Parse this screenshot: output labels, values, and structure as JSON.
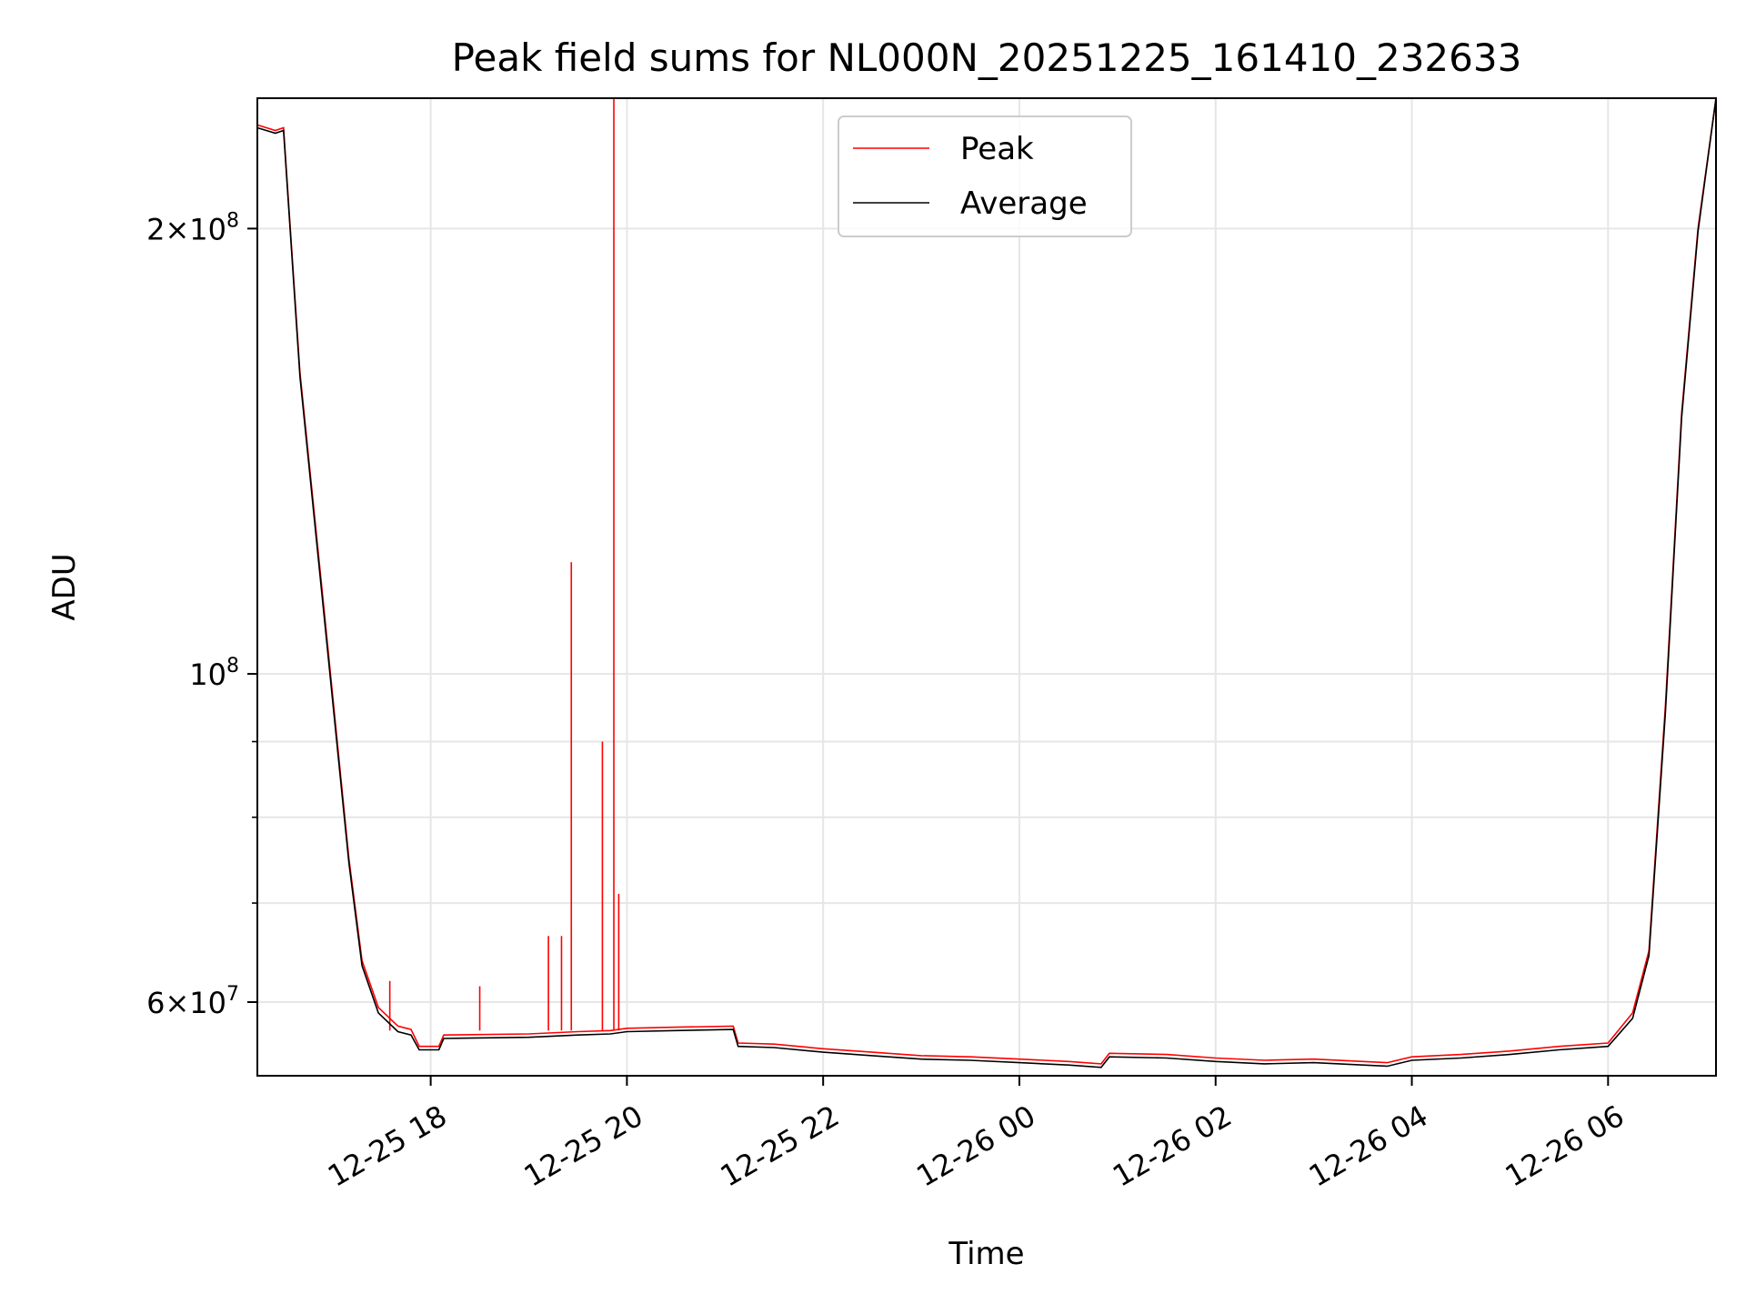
{
  "chart_data": {
    "type": "line",
    "title": "Peak field sums for NL000N_20251225_161410_232633",
    "xlabel": "Time",
    "ylabel": "ADU",
    "y_scale": "log",
    "grid": true,
    "legend_position": "upper center",
    "x_range": [
      "2025-12-25 16:14",
      "2025-12-26 07:06"
    ],
    "ylim": [
      53500000,
      245000000
    ],
    "x_ticks": [
      "2025-12-25 18:00",
      "2025-12-25 20:00",
      "2025-12-25 22:00",
      "2025-12-26 00:00",
      "2025-12-26 02:00",
      "2025-12-26 04:00",
      "2025-12-26 06:00"
    ],
    "x_tick_labels": [
      "12-25 18",
      "12-25 20",
      "12-25 22",
      "12-26 00",
      "12-26 02",
      "12-26 04",
      "12-26 06"
    ],
    "y_ticks": [
      {
        "value": 60000000,
        "mantissa": "6",
        "base": "10",
        "exponent": "7"
      },
      {
        "value": 100000000,
        "mantissa": "",
        "base": "10",
        "exponent": "8"
      },
      {
        "value": 200000000,
        "mantissa": "2",
        "base": "10",
        "exponent": "8"
      }
    ],
    "y_minor_ticks": [
      70000000,
      80000000,
      90000000
    ],
    "series": [
      {
        "name": "Peak",
        "color": "#ff0000",
        "points": [
          [
            "2025-12-25 16:14",
            235000000
          ],
          [
            "2025-12-25 16:25",
            233000000
          ],
          [
            "2025-12-25 16:30",
            234000000
          ],
          [
            "2025-12-25 16:40",
            160000000
          ],
          [
            "2025-12-25 16:55",
            110000000
          ],
          [
            "2025-12-25 17:10",
            75000000
          ],
          [
            "2025-12-25 17:18",
            64000000
          ],
          [
            "2025-12-25 17:28",
            59500000
          ],
          [
            "2025-12-25 17:40",
            57800000
          ],
          [
            "2025-12-25 17:48",
            57500000
          ],
          [
            "2025-12-25 17:53",
            56000000
          ],
          [
            "2025-12-25 18:05",
            56000000
          ],
          [
            "2025-12-25 18:08",
            57000000
          ],
          [
            "2025-12-25 19:00",
            57100000
          ],
          [
            "2025-12-25 19:30",
            57300000
          ],
          [
            "2025-12-25 19:50",
            57400000
          ],
          [
            "2025-12-25 20:00",
            57600000
          ],
          [
            "2025-12-25 20:30",
            57700000
          ],
          [
            "2025-12-25 21:05",
            57800000
          ],
          [
            "2025-12-25 21:08",
            56300000
          ],
          [
            "2025-12-25 21:30",
            56200000
          ],
          [
            "2025-12-25 22:00",
            55800000
          ],
          [
            "2025-12-25 22:30",
            55500000
          ],
          [
            "2025-12-25 23:00",
            55200000
          ],
          [
            "2025-12-25 23:30",
            55100000
          ],
          [
            "2025-12-26 00:00",
            54900000
          ],
          [
            "2025-12-26 00:30",
            54700000
          ],
          [
            "2025-12-26 00:50",
            54500000
          ],
          [
            "2025-12-26 00:55",
            55400000
          ],
          [
            "2025-12-26 01:30",
            55300000
          ],
          [
            "2025-12-26 02:00",
            55000000
          ],
          [
            "2025-12-26 02:30",
            54800000
          ],
          [
            "2025-12-26 03:00",
            54900000
          ],
          [
            "2025-12-26 03:30",
            54700000
          ],
          [
            "2025-12-26 03:45",
            54600000
          ],
          [
            "2025-12-26 04:00",
            55100000
          ],
          [
            "2025-12-26 04:30",
            55300000
          ],
          [
            "2025-12-26 05:00",
            55600000
          ],
          [
            "2025-12-26 05:30",
            56000000
          ],
          [
            "2025-12-26 06:00",
            56300000
          ],
          [
            "2025-12-26 06:15",
            59000000
          ],
          [
            "2025-12-26 06:25",
            65000000
          ],
          [
            "2025-12-26 06:35",
            95000000
          ],
          [
            "2025-12-26 06:45",
            150000000
          ],
          [
            "2025-12-26 06:55",
            200000000
          ],
          [
            "2025-12-26 07:06",
            245000000
          ]
        ],
        "spikes": [
          [
            "2025-12-25 17:35",
            62000000
          ],
          [
            "2025-12-25 18:30",
            61500000
          ],
          [
            "2025-12-25 19:12",
            66500000
          ],
          [
            "2025-12-25 19:20",
            66500000
          ],
          [
            "2025-12-25 19:26",
            119000000
          ],
          [
            "2025-12-25 19:45",
            90000000
          ],
          [
            "2025-12-25 19:52",
            245000000
          ],
          [
            "2025-12-25 19:55",
            71000000
          ]
        ]
      },
      {
        "name": "Average",
        "color": "#000000",
        "points": [
          [
            "2025-12-25 16:14",
            234000000
          ],
          [
            "2025-12-25 16:25",
            232000000
          ],
          [
            "2025-12-25 16:30",
            233000000
          ],
          [
            "2025-12-25 16:40",
            159000000
          ],
          [
            "2025-12-25 16:55",
            109000000
          ],
          [
            "2025-12-25 17:10",
            74500000
          ],
          [
            "2025-12-25 17:18",
            63500000
          ],
          [
            "2025-12-25 17:28",
            59000000
          ],
          [
            "2025-12-25 17:40",
            57300000
          ],
          [
            "2025-12-25 17:48",
            57000000
          ],
          [
            "2025-12-25 17:53",
            55700000
          ],
          [
            "2025-12-25 18:05",
            55700000
          ],
          [
            "2025-12-25 18:08",
            56700000
          ],
          [
            "2025-12-25 19:00",
            56800000
          ],
          [
            "2025-12-25 19:30",
            57000000
          ],
          [
            "2025-12-25 19:50",
            57100000
          ],
          [
            "2025-12-25 20:00",
            57300000
          ],
          [
            "2025-12-25 20:30",
            57400000
          ],
          [
            "2025-12-25 21:05",
            57500000
          ],
          [
            "2025-12-25 21:08",
            56000000
          ],
          [
            "2025-12-25 21:30",
            55900000
          ],
          [
            "2025-12-25 22:00",
            55500000
          ],
          [
            "2025-12-25 22:30",
            55200000
          ],
          [
            "2025-12-25 23:00",
            54900000
          ],
          [
            "2025-12-25 23:30",
            54800000
          ],
          [
            "2025-12-26 00:00",
            54600000
          ],
          [
            "2025-12-26 00:30",
            54400000
          ],
          [
            "2025-12-26 00:50",
            54200000
          ],
          [
            "2025-12-26 00:55",
            55100000
          ],
          [
            "2025-12-26 01:30",
            55000000
          ],
          [
            "2025-12-26 02:00",
            54700000
          ],
          [
            "2025-12-26 02:30",
            54500000
          ],
          [
            "2025-12-26 03:00",
            54600000
          ],
          [
            "2025-12-26 03:30",
            54400000
          ],
          [
            "2025-12-26 03:45",
            54300000
          ],
          [
            "2025-12-26 04:00",
            54800000
          ],
          [
            "2025-12-26 04:30",
            55000000
          ],
          [
            "2025-12-26 05:00",
            55300000
          ],
          [
            "2025-12-26 05:30",
            55700000
          ],
          [
            "2025-12-26 06:00",
            56000000
          ],
          [
            "2025-12-26 06:15",
            58500000
          ],
          [
            "2025-12-26 06:25",
            64500000
          ],
          [
            "2025-12-26 06:35",
            94000000
          ],
          [
            "2025-12-26 06:45",
            149000000
          ],
          [
            "2025-12-26 06:55",
            199000000
          ],
          [
            "2025-12-26 07:06",
            245000000
          ]
        ]
      }
    ]
  }
}
